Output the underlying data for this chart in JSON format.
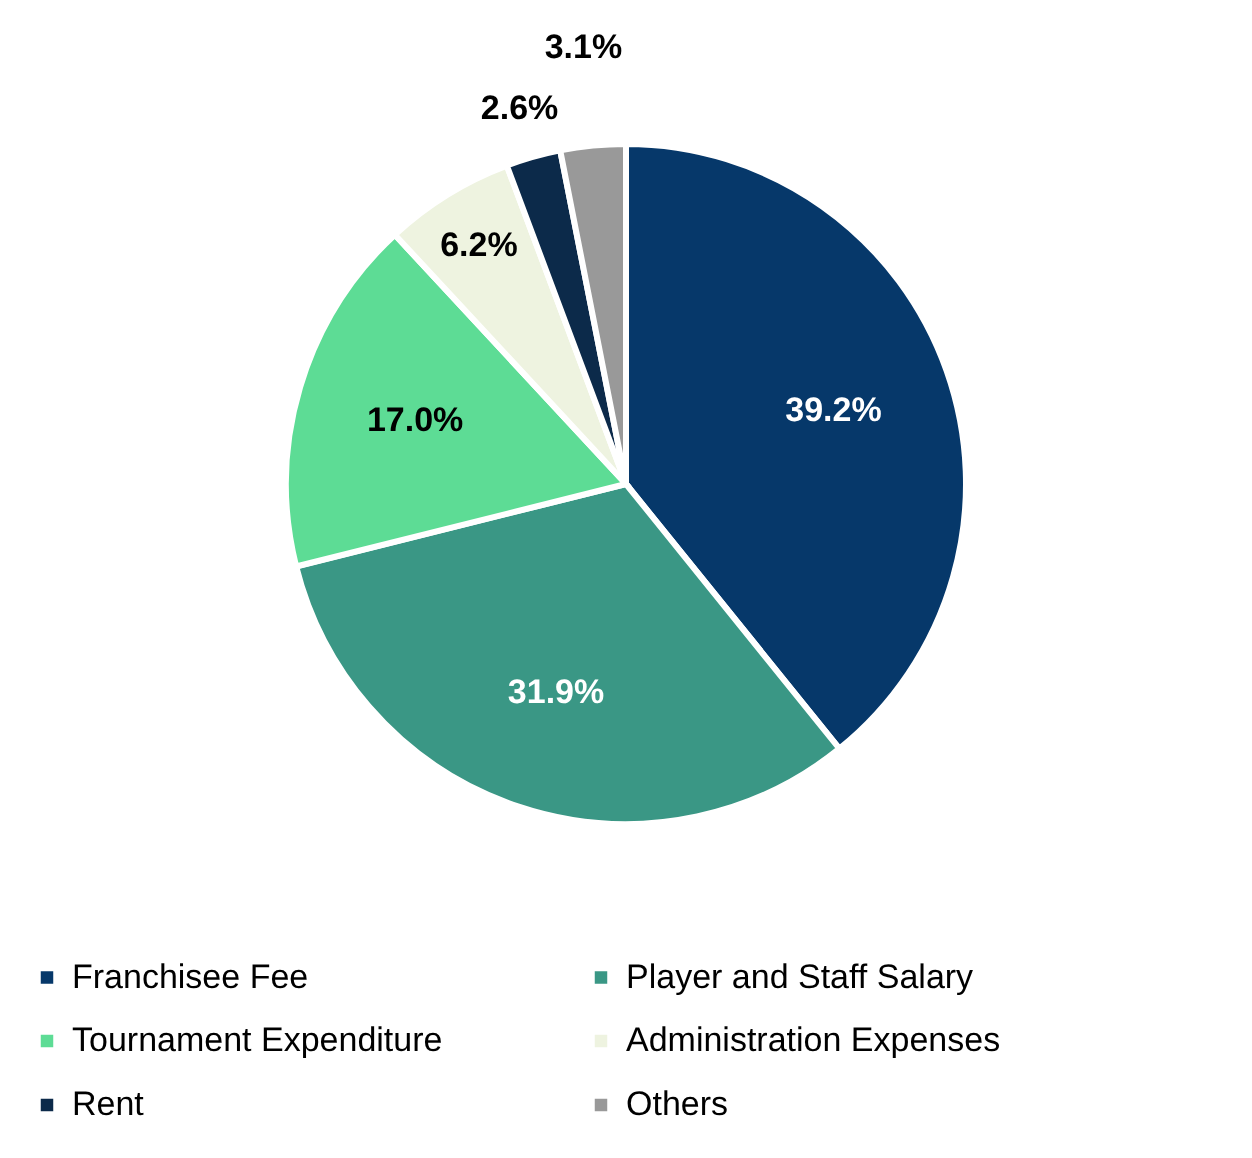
{
  "chart_data": {
    "type": "pie",
    "categories": [
      "Franchisee Fee",
      "Player and Staff Salary",
      "Tournament Expenditure",
      "Administration Expenses",
      "Rent",
      "Others"
    ],
    "values": [
      39.2,
      31.9,
      17.0,
      6.2,
      2.6,
      3.1
    ],
    "colors": [
      "#06386a",
      "#3a9785",
      "#5ddc95",
      "#eef3e0",
      "#0c2a4a",
      "#999999"
    ],
    "value_labels": [
      "39.2%",
      "31.9%",
      "17.0%",
      "6.2%",
      "2.6%",
      "3.1%"
    ],
    "legend": "bottom"
  }
}
